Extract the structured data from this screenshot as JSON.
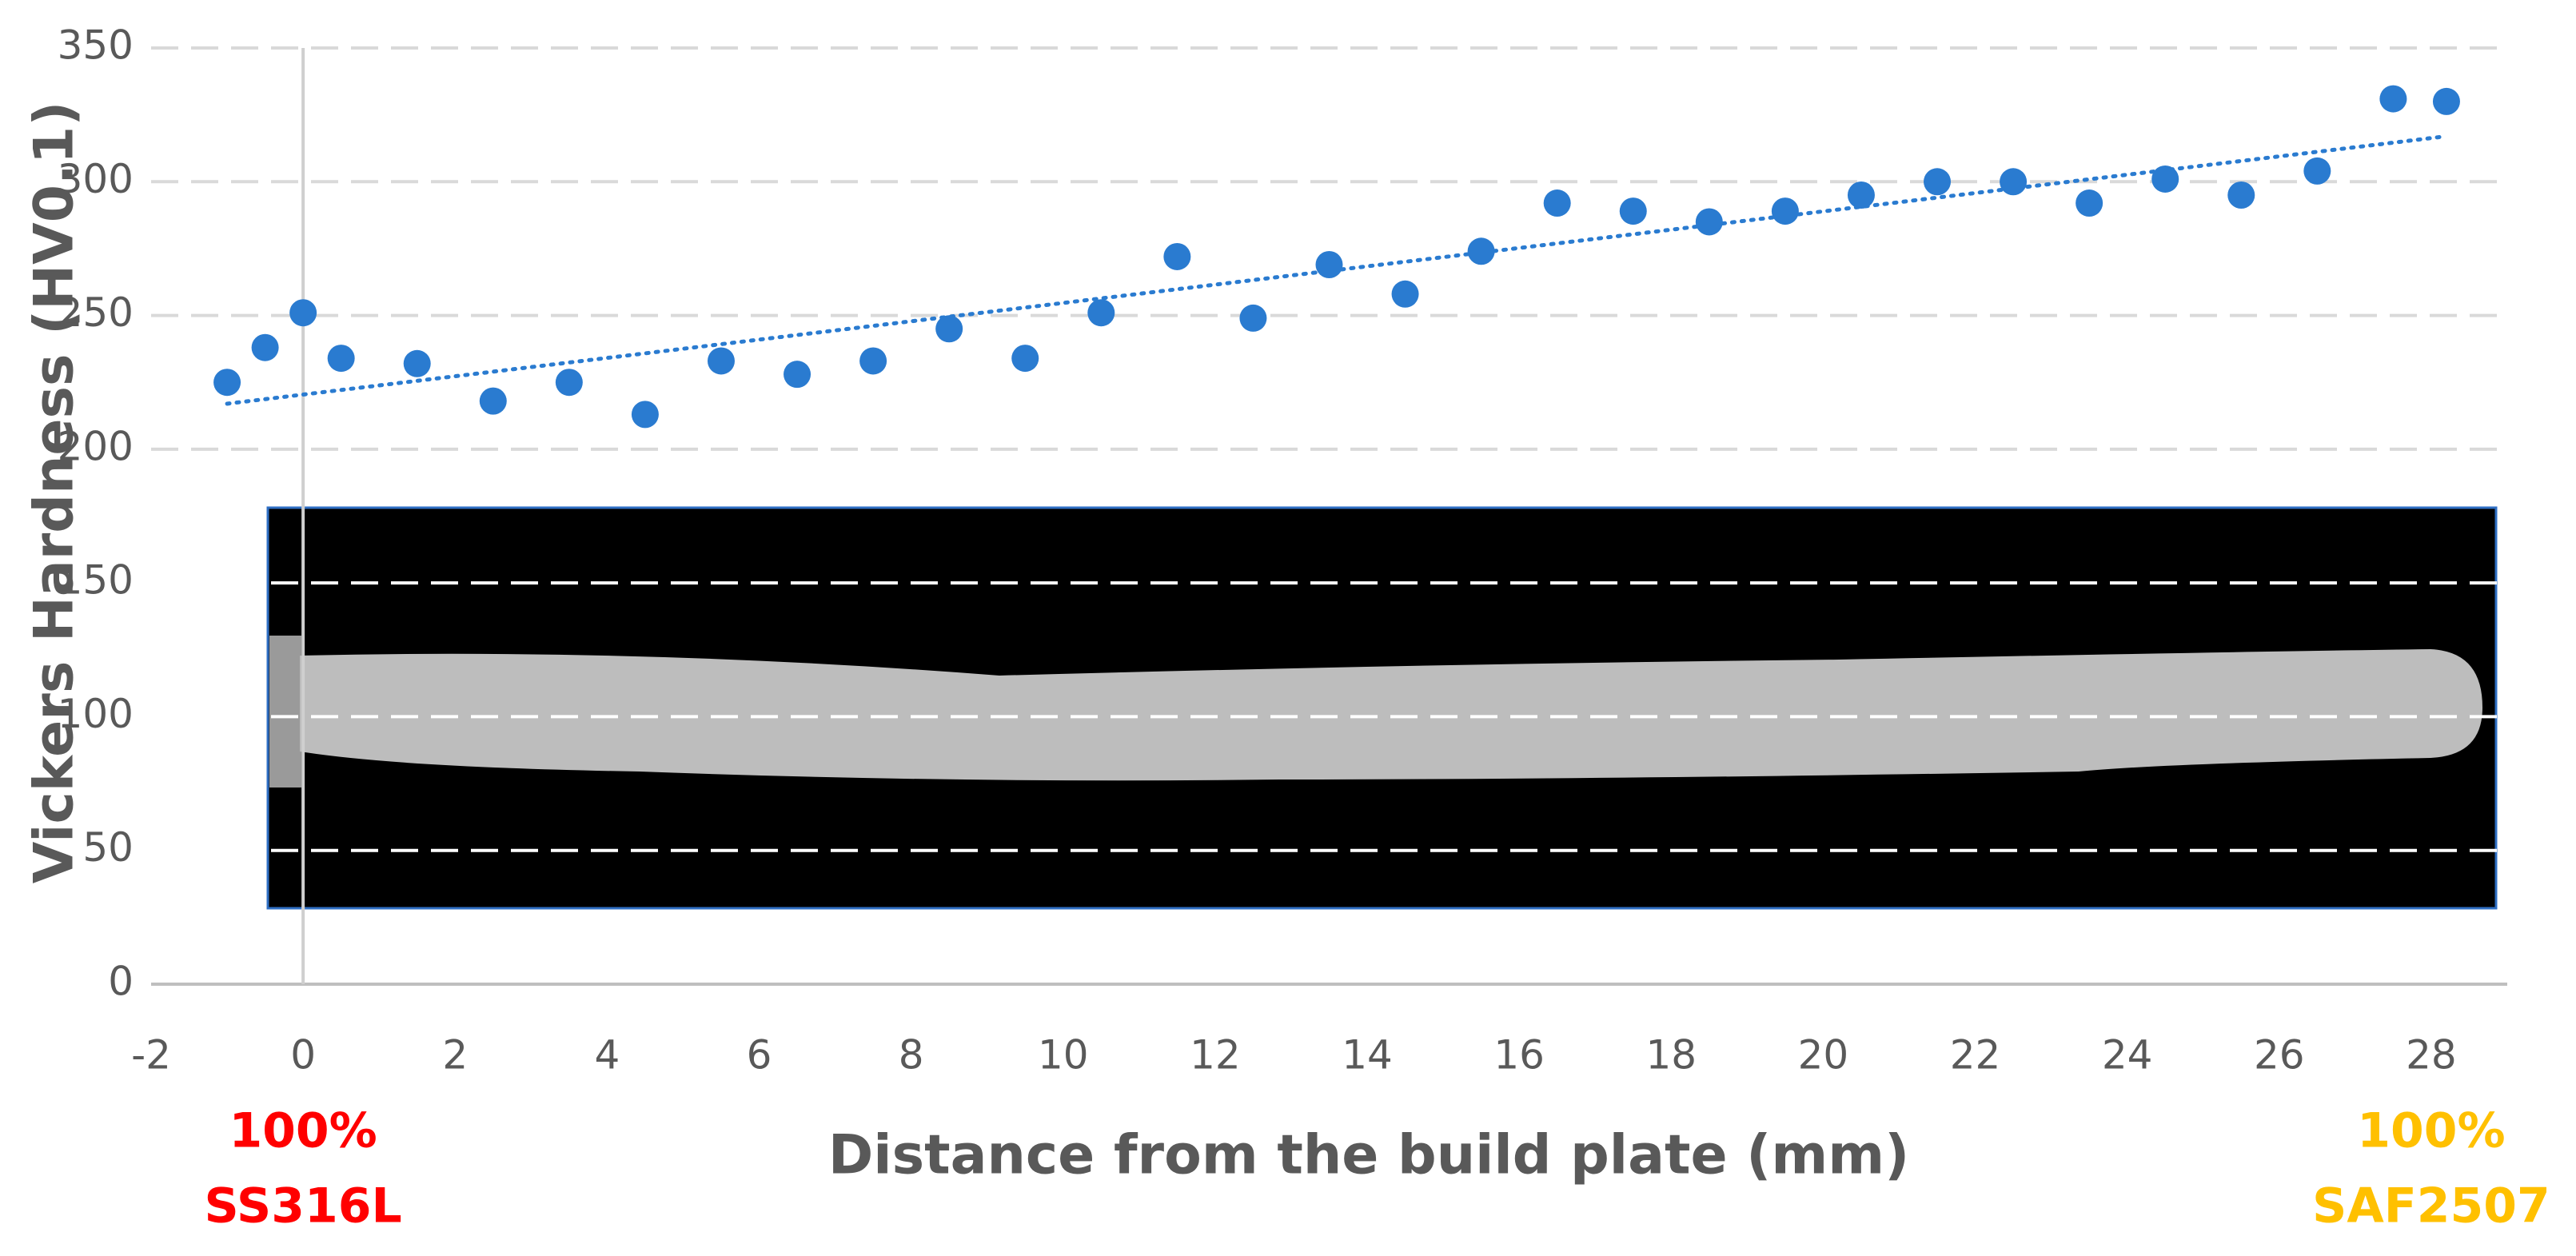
{
  "chart_data": {
    "type": "scatter",
    "y_label": "Vickers Hardness (HV0.1)",
    "x_label": "Distance from the build plate (mm)",
    "series": [
      {
        "color": "#2a7bd0",
        "x": [
          -1,
          -0.5,
          0,
          0.5,
          1.5,
          2.5,
          3.5,
          4.5,
          5.5,
          6.5,
          7.5,
          8.5,
          9.5,
          10.5,
          11.5,
          12.5,
          13.5,
          14.5,
          15.5,
          16.5,
          17.5,
          18.5,
          19.5,
          20.5,
          21.5,
          22.5,
          23.5,
          24.5,
          25.5,
          26.5,
          27.5,
          28.2
        ],
        "values": [
          225,
          238,
          251,
          234,
          232,
          218,
          225,
          213,
          233,
          228,
          233,
          245,
          234,
          251,
          272,
          249,
          269,
          258,
          274,
          292,
          289,
          285,
          289,
          295,
          300,
          300,
          292,
          301,
          295,
          304,
          331,
          330
        ]
      }
    ],
    "trendline": {
      "x": [
        -1,
        28.2
      ],
      "values": [
        217,
        317
      ],
      "color": "#2a7bd0"
    },
    "xlim": [
      -2,
      29
    ],
    "ylim": [
      0,
      350
    ],
    "xticks": [
      -2,
      0,
      2,
      4,
      6,
      8,
      10,
      12,
      14,
      16,
      18,
      20,
      22,
      24,
      26,
      28
    ],
    "yticks": [
      0,
      50,
      100,
      150,
      200,
      250,
      300,
      350
    ],
    "grid": true,
    "annotations": [
      {
        "x": 0,
        "lines": [
          "100%",
          "SS316L"
        ],
        "color": "#ff0000"
      },
      {
        "x": 28,
        "lines": [
          "100%",
          "SAF2507"
        ],
        "color": "#ffc000"
      }
    ]
  }
}
